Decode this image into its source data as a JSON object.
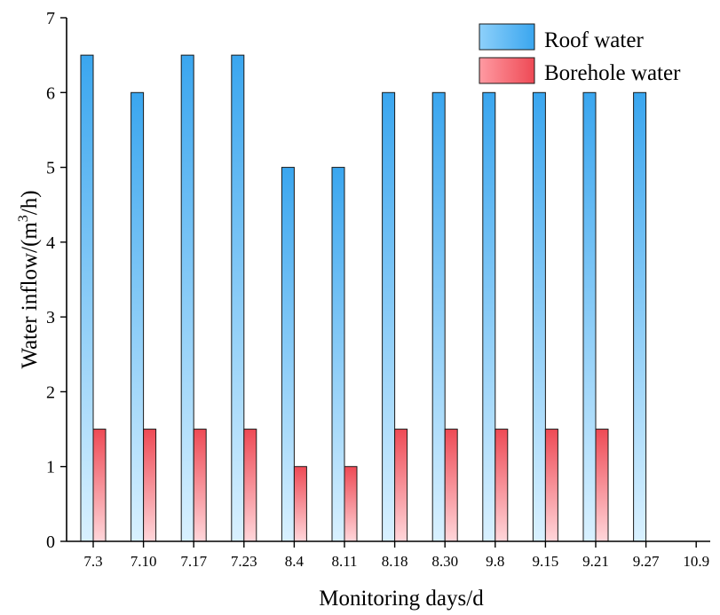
{
  "chart_data": {
    "type": "bar",
    "title": "",
    "xlabel": "Monitoring days/d",
    "ylabel_main": "Water inflow/(m",
    "ylabel_sup": "3",
    "ylabel_tail": "/h)",
    "ylim": [
      0,
      7
    ],
    "yticks": [
      "0",
      "1",
      "2",
      "3",
      "4",
      "5",
      "6",
      "7"
    ],
    "categories": [
      "7.3",
      "7.10",
      "7.17",
      "7.23",
      "8.4",
      "8.11",
      "8.18",
      "8.30",
      "9.8",
      "9.15",
      "9.21",
      "9.27",
      "10.9"
    ],
    "series": [
      {
        "name": "Roof water",
        "color_top": "#3aa6ef",
        "color_bottom": "#d9f1ff",
        "values": [
          6.5,
          6,
          6.5,
          6.5,
          5,
          5,
          6,
          6,
          6,
          6,
          6,
          6,
          0
        ]
      },
      {
        "name": "Borehole water",
        "color_top": "#ee4a55",
        "color_bottom": "#ffd6da",
        "values": [
          1.5,
          1.5,
          1.5,
          1.5,
          1,
          1,
          1.5,
          1.5,
          1.5,
          1.5,
          1.5,
          0,
          0
        ]
      }
    ],
    "legend_position": "top-right",
    "grid": false
  }
}
